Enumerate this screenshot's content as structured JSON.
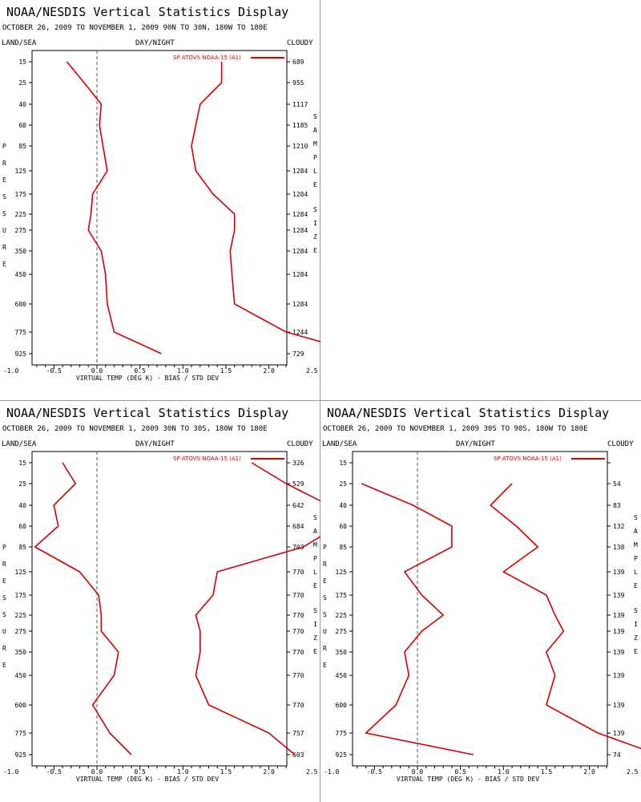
{
  "colors": {
    "series": "#d40000",
    "axis": "#000000",
    "zero_line": "#555555",
    "divider": "#9a9a9a"
  },
  "common": {
    "title": "NOAA/NESDIS Vertical Statistics Display",
    "land_sea": "LAND/SEA",
    "day_night": "DAY/NIGHT",
    "cloudy": "CLOUDY",
    "left_label": "PRESSURE",
    "right_label": "SAMPLE SIZE",
    "xlabel": "VIRTUAL TEMP (DEG K) - BIAS / STD DEV",
    "legend": "SP ATOVS NOAA-15 (A1)"
  },
  "panels": [
    {
      "subtitle": "OCTOBER 26, 2009 TO NOVEMBER 1, 2009 90N TO 30N, 180W TO 180E",
      "sample_sizes": [
        "689",
        "955",
        "1117",
        "1185",
        "1210",
        "1284",
        "1284",
        "1284",
        "1284",
        "1284",
        "1284",
        "1284",
        "1244",
        "729"
      ]
    },
    {
      "subtitle": "OCTOBER 26, 2009 TO NOVEMBER 1, 2009 30N TO 30S, 180W TO 180E",
      "sample_sizes": [
        "326",
        "529",
        "642",
        "684",
        "703",
        "770",
        "770",
        "770",
        "770",
        "770",
        "770",
        "770",
        "757",
        "603"
      ]
    },
    {
      "subtitle": "OCTOBER 26, 2009 TO NOVEMBER 1, 2009 30S TO 90S, 180W TO 180E",
      "sample_sizes": [
        "",
        "54",
        "83",
        "132",
        "138",
        "139",
        "139",
        "139",
        "139",
        "139",
        "139",
        "139",
        "139",
        "74"
      ]
    }
  ],
  "chart_data": [
    {
      "type": "line",
      "title": "NOAA/NESDIS Vertical Statistics Display",
      "subtitle": "OCTOBER 26, 2009 TO NOVEMBER 1, 2009 90N TO 30N, 180W TO 180E",
      "xlabel": "VIRTUAL TEMP (DEG K) - BIAS / STD DEV",
      "ylabel": "PRESSURE",
      "xlim": [
        -1.5,
        4.5
      ],
      "xticks": [
        "-1.0",
        "-0.5",
        "0.0",
        "0.5",
        "1.0",
        "1.5",
        "2.0",
        "2.5",
        "3.0",
        "3.5",
        "4.0"
      ],
      "pressure_levels": [
        "15",
        "25",
        "40",
        "60",
        "85",
        "125",
        "175",
        "225",
        "275",
        "350",
        "450",
        "600",
        "775",
        "925"
      ],
      "legend": "top-right",
      "series": [
        {
          "name": "SP ATOVS NOAA-15 (A1)",
          "stat": "bias",
          "levels": [
            15,
            25,
            40,
            60,
            85,
            125,
            175,
            225,
            275,
            350,
            450,
            600,
            775,
            925
          ],
          "values": [
            -0.35,
            -0.15,
            0.05,
            0.03,
            0.07,
            0.12,
            -0.05,
            -0.07,
            -0.1,
            0.05,
            0.1,
            0.12,
            0.2,
            0.75
          ]
        },
        {
          "name": "SP ATOVS NOAA-15 (A1)",
          "stat": "std_dev",
          "levels": [
            15,
            25,
            40,
            60,
            85,
            125,
            175,
            225,
            275,
            350,
            450,
            600,
            775,
            925
          ],
          "values": [
            1.45,
            1.45,
            1.2,
            1.15,
            1.1,
            1.15,
            1.35,
            1.6,
            1.6,
            1.55,
            1.57,
            1.6,
            2.2,
            3.1
          ]
        }
      ]
    },
    {
      "type": "line",
      "title": "NOAA/NESDIS Vertical Statistics Display",
      "subtitle": "OCTOBER 26, 2009 TO NOVEMBER 1, 2009 30N TO 30S, 180W TO 180E",
      "xlabel": "VIRTUAL TEMP (DEG K) - BIAS / STD DEV",
      "ylabel": "PRESSURE",
      "xlim": [
        -1.5,
        4.5
      ],
      "xticks": [
        "-1.0",
        "-0.5",
        "0.0",
        "0.5",
        "1.0",
        "1.5",
        "2.0",
        "2.5",
        "3.0",
        "3.5",
        "4.0"
      ],
      "pressure_levels": [
        "15",
        "25",
        "40",
        "60",
        "85",
        "125",
        "175",
        "225",
        "275",
        "350",
        "450",
        "600",
        "775",
        "925"
      ],
      "legend": "top-right",
      "series": [
        {
          "name": "SP ATOVS NOAA-15 (A1)",
          "stat": "bias",
          "levels": [
            15,
            25,
            40,
            60,
            85,
            125,
            175,
            225,
            275,
            350,
            450,
            600,
            775,
            925
          ],
          "values": [
            -0.4,
            -0.25,
            -0.5,
            -0.45,
            -0.72,
            -0.2,
            0.02,
            0.05,
            0.05,
            0.25,
            0.2,
            -0.05,
            0.15,
            0.4
          ]
        },
        {
          "name": "SP ATOVS NOAA-15 (A1)",
          "stat": "std_dev",
          "levels": [
            15,
            25,
            40,
            60,
            85,
            125,
            175,
            225,
            275,
            350,
            450,
            600,
            775,
            925
          ],
          "values": [
            1.8,
            2.2,
            2.7,
            2.8,
            2.4,
            1.4,
            1.35,
            1.15,
            1.2,
            1.2,
            1.15,
            1.3,
            2.0,
            2.3
          ]
        }
      ]
    },
    {
      "type": "line",
      "title": "NOAA/NESDIS Vertical Statistics Display",
      "subtitle": "OCTOBER 26, 2009 TO NOVEMBER 1, 2009 30S TO 90S, 180W TO 180E",
      "xlabel": "VIRTUAL TEMP (DEG K) - BIAS / STD DEV",
      "ylabel": "PRESSURE",
      "xlim": [
        -1.5,
        4.5
      ],
      "xticks": [
        "-1.0",
        "-0.5",
        "0.0",
        "0.5",
        "1.0",
        "1.5",
        "2.0",
        "2.5",
        "3.0",
        "3.5",
        "4.0"
      ],
      "pressure_levels": [
        "15",
        "25",
        "40",
        "60",
        "85",
        "125",
        "175",
        "225",
        "275",
        "350",
        "450",
        "600",
        "775",
        "925"
      ],
      "legend": "top-right",
      "series": [
        {
          "name": "SP ATOVS NOAA-15 (A1)",
          "stat": "bias",
          "levels": [
            25,
            40,
            60,
            85,
            125,
            175,
            225,
            275,
            350,
            450,
            600,
            775,
            925
          ],
          "values": [
            -0.65,
            -0.05,
            0.4,
            0.4,
            -0.15,
            0.05,
            0.3,
            0.05,
            -0.15,
            -0.1,
            -0.25,
            -0.6,
            0.65
          ]
        },
        {
          "name": "SP ATOVS NOAA-15 (A1)",
          "stat": "std_dev",
          "levels": [
            25,
            40,
            60,
            85,
            125,
            175,
            225,
            275,
            350,
            450,
            600,
            775,
            925
          ],
          "values": [
            1.1,
            0.85,
            1.15,
            1.4,
            1.0,
            1.5,
            1.6,
            1.7,
            1.5,
            1.6,
            1.5,
            2.1,
            2.8
          ]
        }
      ]
    }
  ]
}
